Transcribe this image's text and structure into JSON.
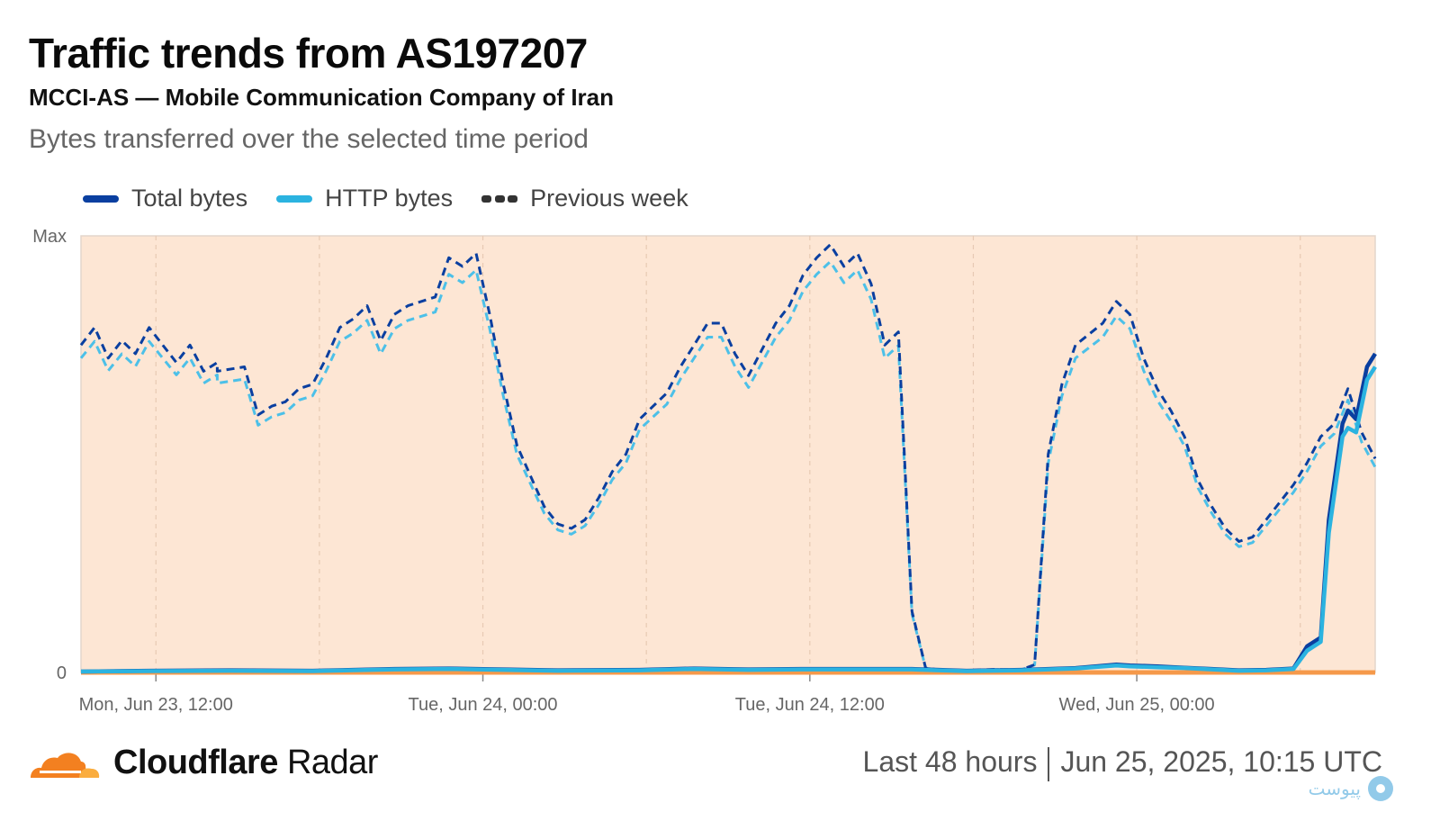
{
  "header": {
    "title": "Traffic trends from AS197207",
    "subtitle": "MCCI-AS — Mobile Communication Company of Iran",
    "description": "Bytes transferred over the selected time period"
  },
  "legend": {
    "total": "Total bytes",
    "http": "HTTP bytes",
    "prev": "Previous week"
  },
  "footer": {
    "brand_bold": "Cloudflare",
    "brand_rest": " Radar",
    "period": "Last 48 hours",
    "timestamp": "Jun 25, 2025, 10:15 UTC"
  },
  "watermark": {
    "text": "پیوست"
  },
  "colors": {
    "total": "#0a3fa0",
    "http": "#2bb3e0",
    "prev_total": "#0a3fa0",
    "prev_http": "#4cc0e8",
    "background_band": "#fde6d4",
    "baseline": "#f5994a",
    "brand_orange": "#f38020"
  },
  "chart_data": {
    "type": "line",
    "y_tick_labels": [
      "Max",
      "0"
    ],
    "ylim": [
      0,
      100
    ],
    "x_tick_labels": [
      "Mon, Jun 23, 12:00",
      "Tue, Jun 24, 00:00",
      "Tue, Jun 24, 12:00",
      "Wed, Jun 25, 00:00"
    ],
    "x_ticks_hours": [
      -12.75,
      -0.75,
      11.25,
      23.25
    ],
    "xlim_hours": [
      -15.5,
      32
    ],
    "x_unit": "hours relative to Tue, Jun 24, 00:00 UTC",
    "grid_hours": [
      -6.75,
      5.25,
      17.25,
      29.25
    ],
    "legend_position": "top-left",
    "series": [
      {
        "name": "Total bytes",
        "style": "solid",
        "points": [
          [
            -15.5,
            0.2
          ],
          [
            -13,
            0.4
          ],
          [
            -10,
            0.5
          ],
          [
            -7,
            0.4
          ],
          [
            -4,
            0.8
          ],
          [
            -2,
            0.9
          ],
          [
            0,
            0.7
          ],
          [
            2,
            0.5
          ],
          [
            5,
            0.6
          ],
          [
            7,
            0.9
          ],
          [
            9,
            0.7
          ],
          [
            11,
            0.8
          ],
          [
            13,
            0.8
          ],
          [
            15,
            0.8
          ],
          [
            16,
            0.6
          ],
          [
            17,
            0.4
          ],
          [
            19,
            0.6
          ],
          [
            21,
            1.0
          ],
          [
            22.5,
            1.8
          ],
          [
            23,
            1.6
          ],
          [
            24,
            1.4
          ],
          [
            25,
            1.1
          ],
          [
            26,
            0.8
          ],
          [
            27,
            0.5
          ],
          [
            28,
            0.6
          ],
          [
            29,
            0.9
          ],
          [
            29.5,
            6
          ],
          [
            30,
            8
          ],
          [
            30.3,
            35
          ],
          [
            30.8,
            57
          ],
          [
            31,
            60
          ],
          [
            31.3,
            58
          ],
          [
            31.7,
            70
          ],
          [
            32,
            73
          ]
        ]
      },
      {
        "name": "HTTP bytes",
        "style": "solid",
        "points": [
          [
            -15.5,
            0.2
          ],
          [
            -13,
            0.3
          ],
          [
            -10,
            0.4
          ],
          [
            -7,
            0.3
          ],
          [
            -4,
            0.7
          ],
          [
            -2,
            0.8
          ],
          [
            0,
            0.6
          ],
          [
            2,
            0.4
          ],
          [
            5,
            0.5
          ],
          [
            7,
            0.8
          ],
          [
            9,
            0.6
          ],
          [
            11,
            0.7
          ],
          [
            13,
            0.7
          ],
          [
            15,
            0.7
          ],
          [
            16,
            0.5
          ],
          [
            17,
            0.3
          ],
          [
            19,
            0.5
          ],
          [
            21,
            0.9
          ],
          [
            22.5,
            1.6
          ],
          [
            23,
            1.4
          ],
          [
            24,
            1.2
          ],
          [
            25,
            1.0
          ],
          [
            26,
            0.7
          ],
          [
            27,
            0.4
          ],
          [
            28,
            0.5
          ],
          [
            29,
            0.8
          ],
          [
            29.5,
            5
          ],
          [
            30,
            7
          ],
          [
            30.3,
            32
          ],
          [
            30.8,
            54
          ],
          [
            31,
            56
          ],
          [
            31.3,
            55
          ],
          [
            31.7,
            67
          ],
          [
            32,
            70
          ]
        ]
      },
      {
        "name": "Previous week",
        "style": "dashed",
        "points": [
          [
            -15.5,
            75
          ],
          [
            -15,
            79
          ],
          [
            -14.5,
            72
          ],
          [
            -14,
            76
          ],
          [
            -13.5,
            73
          ],
          [
            -13,
            79
          ],
          [
            -12.5,
            75
          ],
          [
            -12,
            71
          ],
          [
            -11.5,
            75
          ],
          [
            -11,
            69
          ],
          [
            -10.5,
            71
          ],
          [
            -10.5,
            69
          ],
          [
            -9.5,
            70
          ],
          [
            -9,
            59
          ],
          [
            -8.5,
            61
          ],
          [
            -8,
            62
          ],
          [
            -7.5,
            65
          ],
          [
            -7,
            66
          ],
          [
            -6.5,
            72
          ],
          [
            -6,
            79
          ],
          [
            -5.5,
            81
          ],
          [
            -5,
            84
          ],
          [
            -4.5,
            76
          ],
          [
            -4,
            82
          ],
          [
            -3.5,
            84
          ],
          [
            -2.5,
            86
          ],
          [
            -2,
            95
          ],
          [
            -1.5,
            93
          ],
          [
            -1,
            96
          ],
          [
            -0.5,
            82
          ],
          [
            0,
            66
          ],
          [
            0.5,
            52
          ],
          [
            1,
            45
          ],
          [
            1.5,
            38
          ],
          [
            2,
            34
          ],
          [
            2.5,
            33
          ],
          [
            3,
            35
          ],
          [
            3.5,
            40
          ],
          [
            4,
            46
          ],
          [
            4.5,
            50
          ],
          [
            5,
            58
          ],
          [
            5.5,
            61
          ],
          [
            6,
            64
          ],
          [
            6.5,
            70
          ],
          [
            7,
            75
          ],
          [
            7.5,
            80
          ],
          [
            8,
            80
          ],
          [
            8.5,
            73
          ],
          [
            9,
            68
          ],
          [
            9.5,
            74
          ],
          [
            10,
            80
          ],
          [
            10.5,
            84
          ],
          [
            11,
            91
          ],
          [
            11.5,
            95
          ],
          [
            12,
            98
          ],
          [
            12.5,
            93
          ],
          [
            13,
            96
          ],
          [
            13.5,
            89
          ],
          [
            14,
            75
          ],
          [
            14.5,
            78
          ],
          [
            15,
            14
          ],
          [
            15.5,
            1
          ],
          [
            16,
            0.6
          ],
          [
            17,
            0.5
          ],
          [
            18,
            0.7
          ],
          [
            19,
            0.6
          ],
          [
            19.5,
            1.8
          ],
          [
            20,
            50
          ],
          [
            20.5,
            66
          ],
          [
            21,
            75
          ],
          [
            22,
            80
          ],
          [
            22.5,
            85
          ],
          [
            23,
            82
          ],
          [
            23.5,
            72
          ],
          [
            24,
            65
          ],
          [
            24.5,
            60
          ],
          [
            25,
            54
          ],
          [
            25.5,
            44
          ],
          [
            26,
            38
          ],
          [
            26.5,
            33
          ],
          [
            27,
            30
          ],
          [
            27.5,
            31
          ],
          [
            28,
            35
          ],
          [
            28.5,
            39
          ],
          [
            29,
            43
          ],
          [
            29.5,
            48
          ],
          [
            30,
            54
          ],
          [
            30.5,
            57
          ],
          [
            31,
            65
          ],
          [
            31.5,
            55
          ],
          [
            32,
            49
          ]
        ]
      }
    ]
  }
}
